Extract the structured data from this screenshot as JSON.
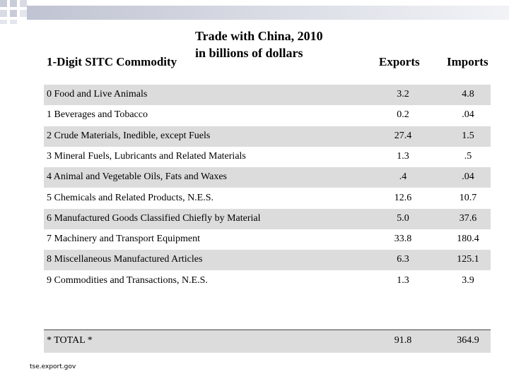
{
  "chart_data": {
    "type": "table",
    "title_line1": "Trade with China, 2010",
    "title_line2": "in billions of dollars",
    "columns": [
      "1-Digit SITC Commodity",
      "Exports",
      "Imports"
    ],
    "rows": [
      {
        "label": "0 Food and Live Animals",
        "exports": "3.2",
        "imports": "4.8"
      },
      {
        "label": "1 Beverages and Tobacco",
        "exports": "0.2",
        "imports": ".04"
      },
      {
        "label": "2 Crude Materials, Inedible, except Fuels",
        "exports": "27.4",
        "imports": "1.5"
      },
      {
        "label": "3 Mineral Fuels, Lubricants and Related Materials",
        "exports": "1.3",
        "imports": ".5"
      },
      {
        "label": "4 Animal and Vegetable Oils, Fats and Waxes",
        "exports": ".4",
        "imports": ".04"
      },
      {
        "label": "5 Chemicals and Related Products, N.E.S.",
        "exports": "12.6",
        "imports": "10.7"
      },
      {
        "label": "6 Manufactured Goods Classified Chiefly by Material",
        "exports": "5.0",
        "imports": "37.6"
      },
      {
        "label": "7 Machinery and Transport Equipment",
        "exports": "33.8",
        "imports": "180.4"
      },
      {
        "label": "8 Miscellaneous Manufactured Articles",
        "exports": "6.3",
        "imports": "125.1"
      },
      {
        "label": "9 Commodities and Transactions, N.E.S.",
        "exports": "1.3",
        "imports": "3.9"
      }
    ],
    "total": {
      "label": "* TOTAL *",
      "exports": "91.8",
      "imports": "364.9"
    }
  },
  "source": "tse.export.gov",
  "colors": {
    "band_dark": "#b8bccb",
    "band_light": "#eceef4",
    "square": "#c8ccd8",
    "row_shade": "#dcdcdc"
  }
}
